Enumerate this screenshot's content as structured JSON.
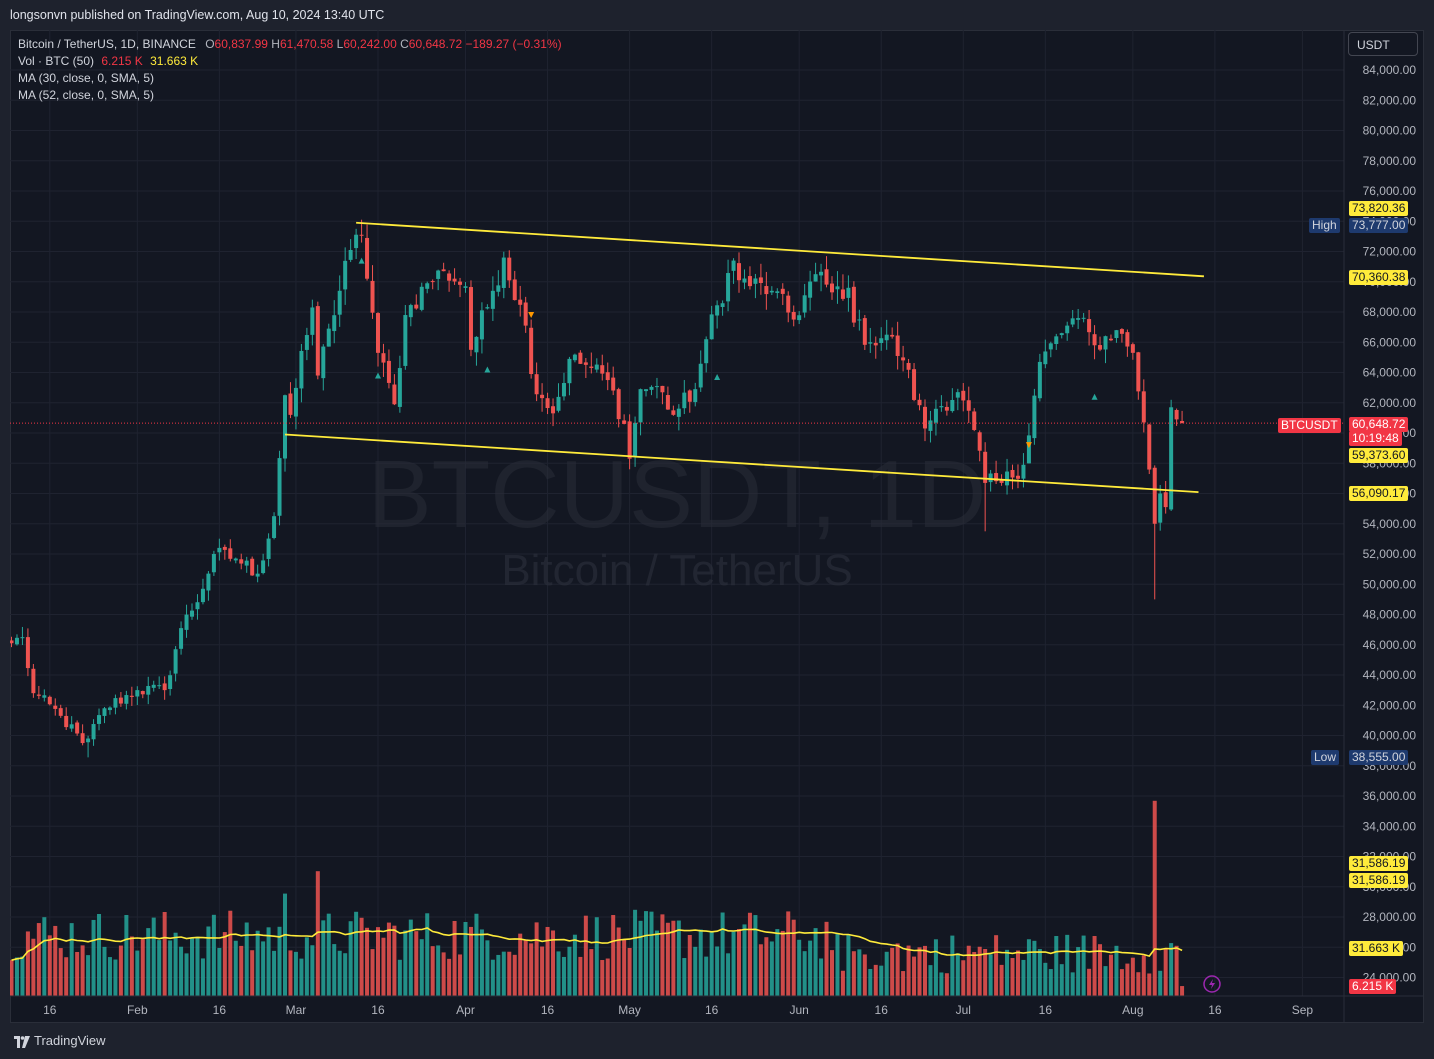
{
  "header": {
    "publisher": "longsonvn published on TradingView.com, Aug 10, 2024 13:40 UTC"
  },
  "legend": {
    "symbol": "Bitcoin / TetherUS, 1D, BINANCE",
    "o_label": "O",
    "o_value": "60,837.99",
    "h_label": "H",
    "h_value": "61,470.58",
    "l_label": "L",
    "l_value": "60,242.00",
    "c_label": "C",
    "c_value": "60,648.72",
    "change": "−189.27 (−0.31%)",
    "vol_label": "Vol · BTC (50)",
    "vol_value": "6.215 K",
    "vol_ma_value": "31.663 K",
    "ma1": "MA (30, close, 0, SMA, 5)",
    "ma2": "MA (52, close, 0, SMA, 5)"
  },
  "currency_button": "USDT",
  "watermark": {
    "line1": "BTCUSDT, 1D",
    "line2": "Bitcoin / TetherUS"
  },
  "price_tags": {
    "channel_top": "73,820.36",
    "high_label": "High",
    "high_value": "73,777.00",
    "trendline_upper": "70,360.38",
    "symbol": "BTCUSDT",
    "last_price": "60,648.72",
    "countdown": "10:19:48",
    "level_1": "59,373.60",
    "trendline_lower": "56,090.17",
    "low_label": "Low",
    "low_value": "38,555.00",
    "vol_tag_1": "31,586.19",
    "vol_tag_2": "31,586.19",
    "vol_ma": "31.663 K",
    "vol_last": "6.215 K"
  },
  "footer": {
    "brand": "TradingView"
  },
  "colors": {
    "up": "#26a69a",
    "down": "#ef5350",
    "ma": "#ffeb3b",
    "background": "#131722"
  },
  "chart_data": {
    "type": "candlestick",
    "title": "Bitcoin / TetherUS, 1D, BINANCE",
    "x_ticks": [
      "16",
      "Feb",
      "16",
      "Mar",
      "16",
      "Apr",
      "16",
      "May",
      "16",
      "Jun",
      "16",
      "Jul",
      "16",
      "Aug",
      "16",
      "Sep"
    ],
    "y_ticks": [
      "84,000.00",
      "82,000.00",
      "80,000.00",
      "78,000.00",
      "76,000.00",
      "74,000.00",
      "72,000.00",
      "70,000.00",
      "68,000.00",
      "66,000.00",
      "64,000.00",
      "62,000.00",
      "60,000.00",
      "58,000.00",
      "56,000.00",
      "54,000.00",
      "52,000.00",
      "50,000.00",
      "48,000.00",
      "46,000.00",
      "44,000.00",
      "42,000.00",
      "40,000.00",
      "38,000.00",
      "36,000.00",
      "34,000.00",
      "32,000.00",
      "30,000.00",
      "28,000.00",
      "26,000.00",
      "24,000.00"
    ],
    "ylim": [
      23500,
      85000
    ],
    "start_date": "2024-01-09",
    "date_range": [
      "2024-01-09",
      "2024-08-10"
    ],
    "trendlines": [
      {
        "name": "upper",
        "from": [
          "2024-03-12",
          73900
        ],
        "to": [
          "2024-08-14",
          70360
        ]
      },
      {
        "name": "lower",
        "from": [
          "2024-02-28",
          59900
        ],
        "to": [
          "2024-08-13",
          56090
        ]
      }
    ],
    "close_anchors": [
      [
        "2024-01-09",
        46100
      ],
      [
        "2024-01-11",
        46500
      ],
      [
        "2024-01-13",
        42800
      ],
      [
        "2024-01-18",
        41300
      ],
      [
        "2024-01-22",
        39500
      ],
      [
        "2024-01-23",
        39800
      ],
      [
        "2024-01-26",
        41800
      ],
      [
        "2024-02-01",
        43000
      ],
      [
        "2024-02-06",
        43000
      ],
      [
        "2024-02-09",
        47100
      ],
      [
        "2024-02-13",
        49700
      ],
      [
        "2024-02-15",
        52000
      ],
      [
        "2024-02-19",
        51700
      ],
      [
        "2024-02-23",
        50700
      ],
      [
        "2024-02-26",
        54500
      ],
      [
        "2024-02-28",
        62500
      ],
      [
        "2024-02-29",
        61200
      ],
      [
        "2024-03-04",
        68300
      ],
      [
        "2024-03-05",
        63800
      ],
      [
        "2024-03-07",
        66900
      ],
      [
        "2024-03-11",
        72100
      ],
      [
        "2024-03-13",
        73100
      ],
      [
        "2024-03-16",
        65300
      ],
      [
        "2024-03-19",
        61900
      ],
      [
        "2024-03-21",
        67800
      ],
      [
        "2024-03-25",
        69900
      ],
      [
        "2024-03-28",
        70700
      ],
      [
        "2024-04-01",
        69700
      ],
      [
        "2024-04-02",
        65500
      ],
      [
        "2024-04-06",
        69400
      ],
      [
        "2024-04-08",
        71600
      ],
      [
        "2024-04-12",
        67100
      ],
      [
        "2024-04-13",
        63900
      ],
      [
        "2024-04-17",
        61300
      ],
      [
        "2024-04-20",
        64900
      ],
      [
        "2024-04-24",
        64300
      ],
      [
        "2024-04-27",
        63500
      ],
      [
        "2024-04-30",
        60600
      ],
      [
        "2024-05-01",
        58300
      ],
      [
        "2024-05-03",
        62900
      ],
      [
        "2024-05-06",
        63100
      ],
      [
        "2024-05-09",
        61200
      ],
      [
        "2024-05-13",
        62900
      ],
      [
        "2024-05-15",
        66200
      ],
      [
        "2024-05-20",
        71400
      ],
      [
        "2024-05-21",
        70100
      ],
      [
        "2024-05-27",
        69400
      ],
      [
        "2024-05-31",
        67500
      ],
      [
        "2024-06-04",
        70500
      ],
      [
        "2024-06-07",
        69300
      ],
      [
        "2024-06-10",
        69600
      ],
      [
        "2024-06-11",
        67300
      ],
      [
        "2024-06-14",
        66000
      ],
      [
        "2024-06-17",
        66500
      ],
      [
        "2024-06-20",
        64800
      ],
      [
        "2024-06-24",
        60300
      ],
      [
        "2024-06-26",
        61600
      ],
      [
        "2024-06-30",
        62700
      ],
      [
        "2024-07-03",
        60200
      ],
      [
        "2024-07-05",
        56700
      ],
      [
        "2024-07-08",
        56700
      ],
      [
        "2024-07-12",
        57900
      ],
      [
        "2024-07-15",
        64700
      ],
      [
        "2024-07-20",
        67100
      ],
      [
        "2024-07-22",
        67600
      ],
      [
        "2024-07-25",
        65800
      ],
      [
        "2024-07-29",
        66800
      ],
      [
        "2024-08-01",
        65300
      ],
      [
        "2024-08-03",
        60700
      ],
      [
        "2024-08-05",
        54000
      ],
      [
        "2024-08-06",
        56000
      ],
      [
        "2024-08-07",
        55100
      ],
      [
        "2024-08-08",
        61700
      ],
      [
        "2024-08-09",
        60900
      ],
      [
        "2024-08-10",
        60649
      ]
    ],
    "volume": {
      "ylabel": "Vol · BTC (50)",
      "ma_value": 31663,
      "last_value": 6215,
      "spikes": [
        [
          "2024-02-28",
          64000
        ],
        [
          "2024-03-05",
          78000
        ],
        [
          "2024-08-05",
          122000
        ]
      ]
    },
    "annotations": [
      "High 73,777.00",
      "Low 38,555.00"
    ]
  }
}
